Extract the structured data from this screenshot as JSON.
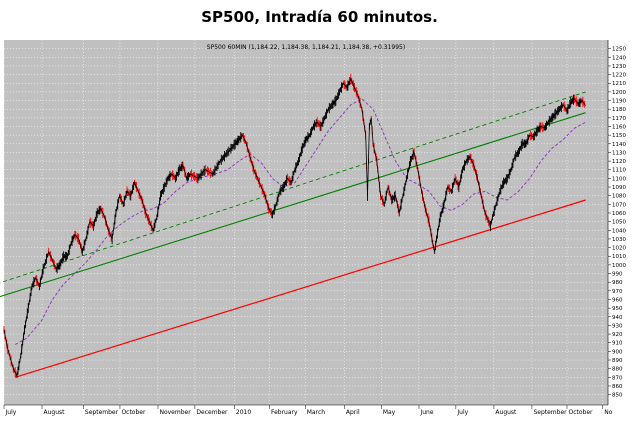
{
  "page_title": "SP500, Intradía 60 minutos.",
  "chart_data": {
    "type": "line",
    "title": "SP500, Intradía 60 minutos.",
    "subtitle": "SP500 60MIN (1,184.22, 1,184.38, 1,184.21, 1,184.38, +0.31995)",
    "xlabel": "",
    "ylabel": "",
    "ylim": [
      838,
      1260
    ],
    "y_ticks": [
      850,
      860,
      870,
      880,
      890,
      900,
      910,
      920,
      930,
      940,
      950,
      960,
      970,
      980,
      990,
      1000,
      1010,
      1020,
      1030,
      1040,
      1050,
      1060,
      1070,
      1080,
      1090,
      1100,
      1110,
      1120,
      1130,
      1140,
      1150,
      1160,
      1170,
      1180,
      1190,
      1200,
      1210,
      1220,
      1230,
      1240,
      1250
    ],
    "x_labels": [
      "July",
      "August",
      "September",
      "October",
      "November",
      "December",
      "2010",
      "February",
      "March",
      "April",
      "May",
      "June",
      "July",
      "August",
      "September",
      "October",
      "No"
    ],
    "x_label_pos": [
      0,
      1.02,
      2.13,
      3.11,
      4.13,
      5.12,
      6.18,
      7.12,
      8.08,
      9.13,
      10.12,
      11.13,
      12.12,
      13.14,
      14.16,
      15.1,
      16.06
    ],
    "x_range": [
      0,
      16.2
    ],
    "grid": true,
    "legend": "none",
    "series": [
      {
        "style": "price",
        "color": "#000000",
        "points": [
          [
            0,
            925
          ],
          [
            0.1,
            903
          ],
          [
            0.25,
            880
          ],
          [
            0.35,
            872
          ],
          [
            0.45,
            895
          ],
          [
            0.55,
            925
          ],
          [
            0.65,
            950
          ],
          [
            0.75,
            975
          ],
          [
            0.85,
            985
          ],
          [
            0.95,
            975
          ],
          [
            1.05,
            995
          ],
          [
            1.2,
            1015
          ],
          [
            1.3,
            1005
          ],
          [
            1.4,
            995
          ],
          [
            1.5,
            1000
          ],
          [
            1.6,
            1010
          ],
          [
            1.7,
            1010
          ],
          [
            1.8,
            1025
          ],
          [
            1.9,
            1035
          ],
          [
            2.0,
            1030
          ],
          [
            2.1,
            1015
          ],
          [
            2.2,
            1030
          ],
          [
            2.3,
            1050
          ],
          [
            2.4,
            1045
          ],
          [
            2.5,
            1060
          ],
          [
            2.6,
            1065
          ],
          [
            2.7,
            1055
          ],
          [
            2.8,
            1040
          ],
          [
            2.9,
            1030
          ],
          [
            3.0,
            1060
          ],
          [
            3.1,
            1080
          ],
          [
            3.2,
            1070
          ],
          [
            3.3,
            1085
          ],
          [
            3.4,
            1080
          ],
          [
            3.5,
            1095
          ],
          [
            3.6,
            1085
          ],
          [
            3.7,
            1075
          ],
          [
            3.8,
            1060
          ],
          [
            3.9,
            1050
          ],
          [
            4.0,
            1040
          ],
          [
            4.1,
            1055
          ],
          [
            4.2,
            1080
          ],
          [
            4.3,
            1090
          ],
          [
            4.4,
            1100
          ],
          [
            4.5,
            1105
          ],
          [
            4.6,
            1100
          ],
          [
            4.7,
            1110
          ],
          [
            4.8,
            1115
          ],
          [
            4.9,
            1100
          ],
          [
            5.0,
            1105
          ],
          [
            5.2,
            1100
          ],
          [
            5.4,
            1110
          ],
          [
            5.6,
            1105
          ],
          [
            5.8,
            1120
          ],
          [
            6.0,
            1130
          ],
          [
            6.2,
            1140
          ],
          [
            6.3,
            1145
          ],
          [
            6.4,
            1150
          ],
          [
            6.5,
            1140
          ],
          [
            6.6,
            1125
          ],
          [
            6.7,
            1110
          ],
          [
            6.8,
            1100
          ],
          [
            6.9,
            1090
          ],
          [
            7.0,
            1080
          ],
          [
            7.1,
            1065
          ],
          [
            7.2,
            1058
          ],
          [
            7.3,
            1070
          ],
          [
            7.4,
            1085
          ],
          [
            7.5,
            1090
          ],
          [
            7.6,
            1100
          ],
          [
            7.7,
            1095
          ],
          [
            7.8,
            1110
          ],
          [
            7.9,
            1120
          ],
          [
            8.0,
            1135
          ],
          [
            8.1,
            1145
          ],
          [
            8.2,
            1150
          ],
          [
            8.3,
            1160
          ],
          [
            8.4,
            1165
          ],
          [
            8.5,
            1160
          ],
          [
            8.6,
            1170
          ],
          [
            8.7,
            1180
          ],
          [
            8.8,
            1185
          ],
          [
            8.9,
            1190
          ],
          [
            9.0,
            1200
          ],
          [
            9.1,
            1210
          ],
          [
            9.2,
            1205
          ],
          [
            9.3,
            1215
          ],
          [
            9.4,
            1205
          ],
          [
            9.5,
            1195
          ],
          [
            9.6,
            1180
          ],
          [
            9.7,
            1150
          ],
          [
            9.75,
            1080
          ],
          [
            9.8,
            1160
          ],
          [
            9.85,
            1170
          ],
          [
            9.9,
            1140
          ],
          [
            10.0,
            1120
          ],
          [
            10.1,
            1080
          ],
          [
            10.2,
            1070
          ],
          [
            10.3,
            1090
          ],
          [
            10.4,
            1075
          ],
          [
            10.5,
            1080
          ],
          [
            10.6,
            1060
          ],
          [
            10.7,
            1080
          ],
          [
            10.8,
            1100
          ],
          [
            10.9,
            1120
          ],
          [
            11.0,
            1130
          ],
          [
            11.1,
            1110
          ],
          [
            11.2,
            1085
          ],
          [
            11.3,
            1065
          ],
          [
            11.4,
            1050
          ],
          [
            11.5,
            1025
          ],
          [
            11.55,
            1015
          ],
          [
            11.6,
            1030
          ],
          [
            11.7,
            1055
          ],
          [
            11.8,
            1070
          ],
          [
            11.9,
            1090
          ],
          [
            12.0,
            1085
          ],
          [
            12.1,
            1100
          ],
          [
            12.2,
            1090
          ],
          [
            12.3,
            1110
          ],
          [
            12.4,
            1120
          ],
          [
            12.5,
            1125
          ],
          [
            12.6,
            1115
          ],
          [
            12.7,
            1100
          ],
          [
            12.8,
            1080
          ],
          [
            12.9,
            1060
          ],
          [
            13.0,
            1050
          ],
          [
            13.05,
            1045
          ],
          [
            13.1,
            1055
          ],
          [
            13.2,
            1070
          ],
          [
            13.3,
            1085
          ],
          [
            13.4,
            1095
          ],
          [
            13.5,
            1100
          ],
          [
            13.6,
            1110
          ],
          [
            13.7,
            1125
          ],
          [
            13.8,
            1130
          ],
          [
            13.9,
            1140
          ],
          [
            14.0,
            1140
          ],
          [
            14.1,
            1150
          ],
          [
            14.2,
            1148
          ],
          [
            14.3,
            1155
          ],
          [
            14.4,
            1160
          ],
          [
            14.5,
            1158
          ],
          [
            14.6,
            1165
          ],
          [
            14.7,
            1170
          ],
          [
            14.8,
            1175
          ],
          [
            14.9,
            1180
          ],
          [
            15.0,
            1185
          ],
          [
            15.1,
            1178
          ],
          [
            15.2,
            1188
          ],
          [
            15.3,
            1192
          ],
          [
            15.4,
            1186
          ],
          [
            15.5,
            1190
          ],
          [
            15.6,
            1184
          ]
        ]
      },
      {
        "style": "moving-average",
        "color": "#8B2FC0",
        "points": [
          [
            0.3,
            908
          ],
          [
            0.6,
            915
          ],
          [
            1.0,
            935
          ],
          [
            1.3,
            960
          ],
          [
            1.6,
            978
          ],
          [
            1.9,
            990
          ],
          [
            2.2,
            1003
          ],
          [
            2.5,
            1018
          ],
          [
            2.8,
            1035
          ],
          [
            3.1,
            1046
          ],
          [
            3.4,
            1055
          ],
          [
            3.7,
            1062
          ],
          [
            4.0,
            1065
          ],
          [
            4.3,
            1072
          ],
          [
            4.6,
            1085
          ],
          [
            4.9,
            1095
          ],
          [
            5.2,
            1100
          ],
          [
            5.6,
            1104
          ],
          [
            6.0,
            1110
          ],
          [
            6.3,
            1120
          ],
          [
            6.6,
            1128
          ],
          [
            6.9,
            1118
          ],
          [
            7.2,
            1100
          ],
          [
            7.5,
            1090
          ],
          [
            7.8,
            1095
          ],
          [
            8.1,
            1115
          ],
          [
            8.4,
            1135
          ],
          [
            8.7,
            1155
          ],
          [
            9.0,
            1170
          ],
          [
            9.3,
            1185
          ],
          [
            9.6,
            1192
          ],
          [
            9.9,
            1180
          ],
          [
            10.2,
            1150
          ],
          [
            10.5,
            1120
          ],
          [
            10.8,
            1100
          ],
          [
            11.1,
            1093
          ],
          [
            11.4,
            1085
          ],
          [
            11.7,
            1068
          ],
          [
            12.0,
            1063
          ],
          [
            12.3,
            1070
          ],
          [
            12.6,
            1082
          ],
          [
            12.9,
            1085
          ],
          [
            13.2,
            1078
          ],
          [
            13.5,
            1075
          ],
          [
            13.8,
            1085
          ],
          [
            14.1,
            1100
          ],
          [
            14.4,
            1120
          ],
          [
            14.7,
            1135
          ],
          [
            15.0,
            1145
          ],
          [
            15.3,
            1158
          ],
          [
            15.6,
            1165
          ]
        ]
      },
      {
        "style": "trendline-support",
        "color": "#FF0000",
        "points": [
          [
            0.3,
            870
          ],
          [
            15.6,
            1075
          ]
        ]
      },
      {
        "style": "trendline-channel",
        "color": "#008000",
        "points": [
          [
            -0.2,
            962
          ],
          [
            15.6,
            1176
          ]
        ]
      },
      {
        "style": "trendline-channel-dashed",
        "color": "#008000",
        "points": [
          [
            -0.2,
            978
          ],
          [
            15.6,
            1200
          ]
        ]
      }
    ]
  }
}
